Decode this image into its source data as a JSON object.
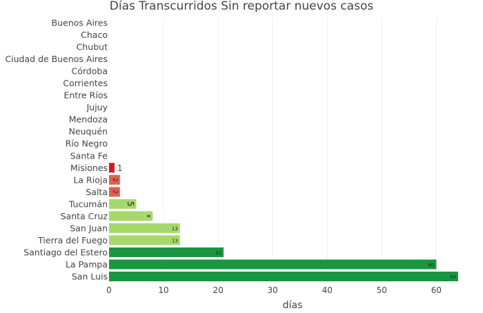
{
  "chart_data": {
    "type": "bar",
    "orientation": "horizontal",
    "title": "Días Transcurridos Sin reportar nuevos casos",
    "xlabel": "días",
    "ylabel": "",
    "xlim": [
      0,
      64
    ],
    "x_ticks": [
      0,
      10,
      20,
      30,
      40,
      50,
      60
    ],
    "grid": true,
    "categories": [
      "Buenos Aires",
      "Chaco",
      "Chubut",
      "Ciudad de Buenos Aires",
      "Córdoba",
      "Corrientes",
      "Entre Ríos",
      "Jujuy",
      "Mendoza",
      "Neuquén",
      "Río Negro",
      "Santa Fe",
      "Misiones",
      "La Rioja",
      "Salta",
      "Tucumán",
      "Santa Cruz",
      "San Juan",
      "Tierra del Fuego",
      "Santiago del Estero",
      "La Pampa",
      "San Luis"
    ],
    "values": [
      0,
      0,
      0,
      0,
      0,
      0,
      0,
      0,
      0,
      0,
      0,
      0,
      1,
      2,
      2,
      5,
      8,
      13,
      13,
      21,
      60,
      64
    ],
    "colors": {
      "1": "#d7191c",
      "2": "#e0604f",
      "5": "#a6d96a",
      "8": "#a6d96a",
      "13": "#a6d96a",
      "21": "#1a9641",
      "60": "#1a9641",
      "64": "#1a9641"
    },
    "grid_color": "#eeeeee",
    "text_color": "#444444"
  }
}
